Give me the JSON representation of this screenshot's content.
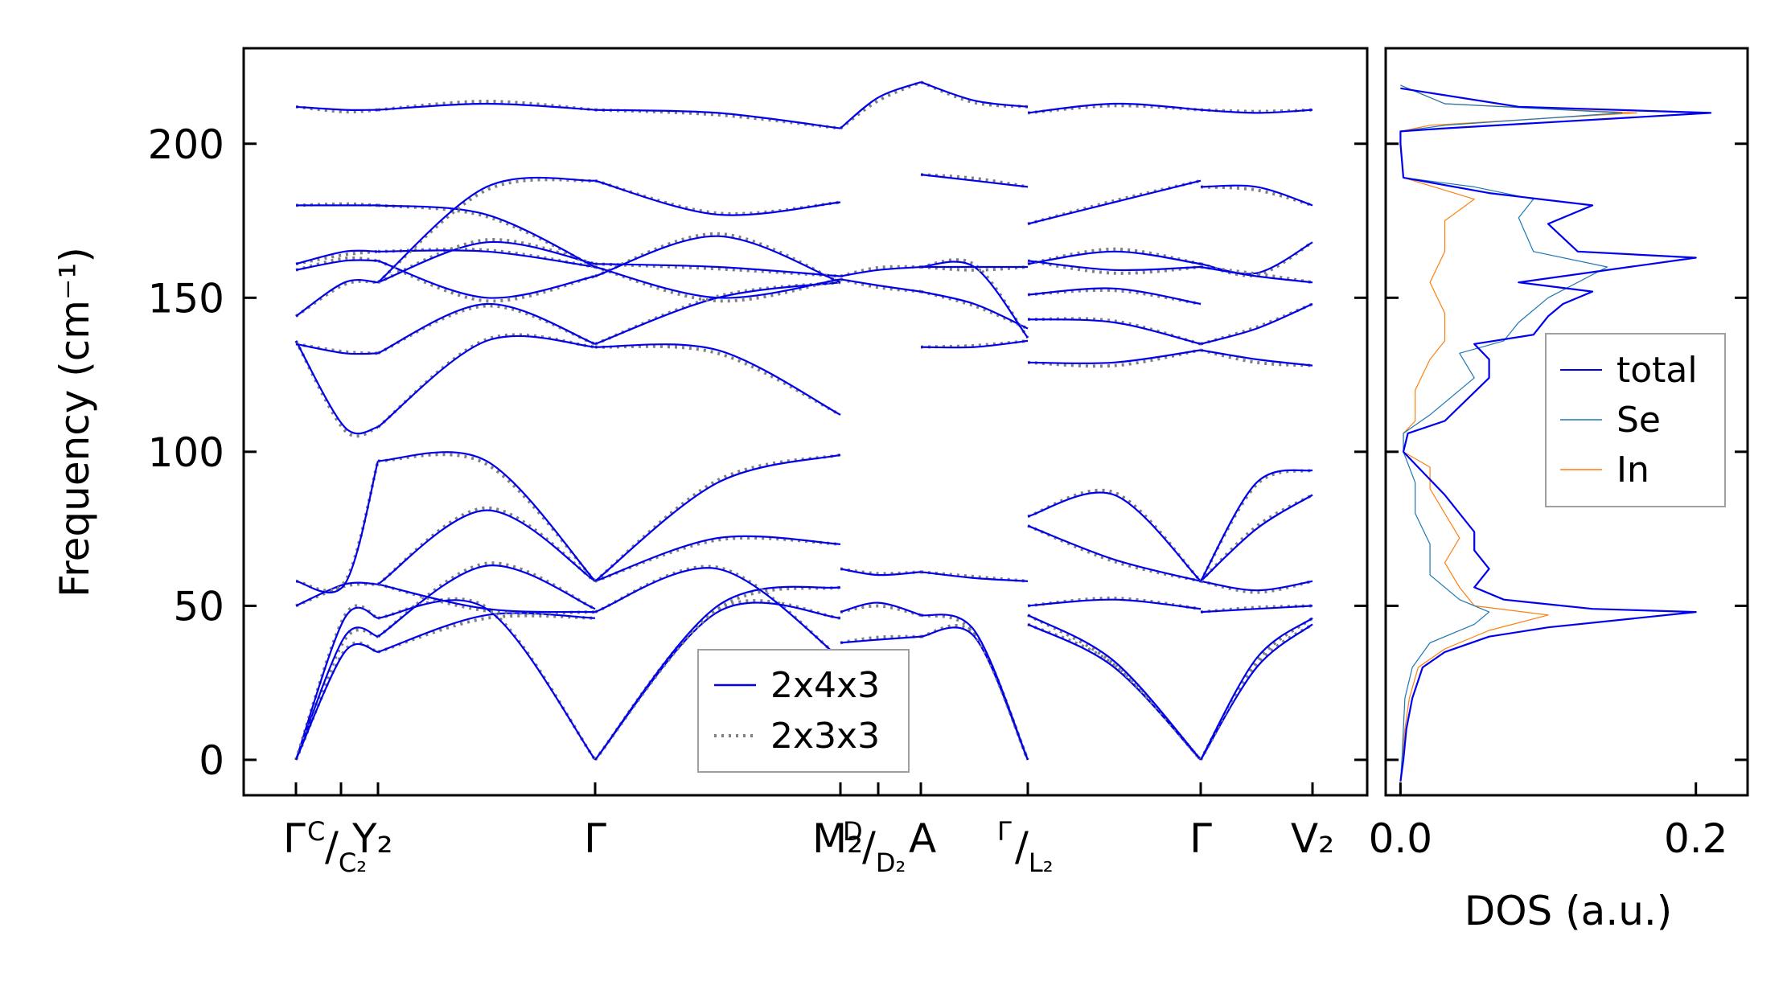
{
  "chart_data": [
    {
      "type": "line",
      "panel": "phonon-dispersion",
      "ylabel": "Frequency (cm⁻¹)",
      "ylim": [
        -11.5,
        231
      ],
      "y_ticks": [
        0,
        50,
        100,
        150,
        200
      ],
      "x_ticks": [
        {
          "main": "Γ"
        },
        {
          "main": "C",
          "small": true
        },
        {
          "main": "/",
          "sub": "C₂"
        },
        {
          "main": "Y₂"
        },
        {
          "main": "Γ"
        },
        {
          "main": "M₂"
        },
        {
          "main": "D",
          "small": true
        },
        {
          "main": "/",
          "sub": "D₂"
        },
        {
          "main": "A"
        },
        {
          "main": "Γ",
          "small": true
        },
        {
          "main": "/",
          "sub": "L₂"
        },
        {
          "main": "Γ"
        },
        {
          "main": "V₂"
        }
      ],
      "series": [
        {
          "name": "2x4x3",
          "style": "solid",
          "color": "#0000ee"
        },
        {
          "name": "2x3x3",
          "style": "dotted",
          "color": "#808080"
        }
      ],
      "segments": [
        {
          "x": [
            0.0,
            0.27
          ],
          "bands": [
            [
              0,
              46,
              46
            ],
            [
              0,
              40,
              40
            ],
            [
              0,
              35,
              35
            ],
            [
              50,
              57,
              57
            ],
            [
              58,
              57,
              97
            ],
            [
              136,
              108,
              108
            ],
            [
              135,
              132,
              132
            ],
            [
              144,
              155,
              155
            ],
            [
              159,
              162,
              162
            ],
            [
              161,
              165,
              165
            ],
            [
              180,
              180,
              180
            ],
            [
              212,
              211,
              211
            ]
          ]
        },
        {
          "x": [
            0.27,
            1.0
          ],
          "bands": [
            [
              40,
              63,
              49
            ],
            [
              35,
              47,
              46
            ],
            [
              46,
              49,
              0
            ],
            [
              57,
              49,
              48
            ],
            [
              57,
              81,
              58
            ],
            [
              97,
              97,
              58
            ],
            [
              108,
              136,
              134
            ],
            [
              132,
              148,
              135
            ],
            [
              155,
              168,
              161
            ],
            [
              162,
              150,
              157
            ],
            [
              165,
              165,
              160
            ],
            [
              180,
              177,
              160
            ],
            [
              211,
              213,
              211
            ],
            [
              155,
              186,
              188
            ]
          ]
        },
        {
          "x": [
            1.0,
            1.8
          ],
          "bands": [
            [
              0,
              48,
              46
            ],
            [
              0,
              50,
              56
            ],
            [
              48,
              62,
              33
            ],
            [
              58,
              72,
              70
            ],
            [
              58,
              90,
              99
            ],
            [
              134,
              133,
              112
            ],
            [
              135,
              150,
              155
            ],
            [
              161,
              160,
              157
            ],
            [
              157,
              170,
              155
            ],
            [
              160,
              150,
              156
            ],
            [
              188,
              177,
              181
            ],
            [
              211,
              210,
              205
            ]
          ]
        },
        {
          "x": [
            1.8,
            2.0
          ],
          "bands": [
            [
              38,
              39,
              40
            ],
            [
              48,
              51,
              47
            ],
            [
              62,
              60,
              61
            ],
            [
              156,
              154,
              152
            ],
            [
              157,
              159,
              160
            ],
            [
              205,
              215,
              220
            ]
          ]
        },
        {
          "x": [
            2.0,
            2.35
          ],
          "bands": [
            [
              40,
              40,
              0
            ],
            [
              47,
              42,
              0
            ],
            [
              61,
              59,
              58
            ],
            [
              152,
              148,
              140
            ],
            [
              160,
              160,
              137
            ],
            [
              160,
              160,
              160
            ],
            [
              134,
              134,
              136
            ],
            [
              220,
              214,
              212
            ],
            [
              190,
              188,
              186
            ]
          ]
        },
        {
          "x": [
            2.35,
            2.9
          ],
          "bands": [
            [
              44,
              30,
              0
            ],
            [
              47,
              32,
              0
            ],
            [
              50,
              52,
              49
            ],
            [
              76,
              65,
              58
            ],
            [
              79,
              86,
              58
            ],
            [
              129,
              129,
              133
            ],
            [
              143,
              142,
              135
            ],
            [
              151,
              153,
              148
            ],
            [
              161,
              165,
              161
            ],
            [
              162,
              159,
              160
            ],
            [
              174,
              181,
              188
            ],
            [
              210,
              213,
              211
            ]
          ]
        },
        {
          "x": [
            2.9,
            3.35
          ],
          "bands": [
            [
              0,
              30,
              44
            ],
            [
              0,
              33,
              46
            ],
            [
              48,
              49,
              50
            ],
            [
              58,
              55,
              58
            ],
            [
              58,
              75,
              86
            ],
            [
              133,
              130,
              128
            ],
            [
              135,
              140,
              148
            ],
            [
              161,
              158,
              168
            ],
            [
              160,
              157,
              155
            ],
            [
              186,
              186,
              180
            ],
            [
              211,
              210,
              211
            ],
            [
              58,
              90,
              94
            ]
          ]
        }
      ]
    },
    {
      "type": "line",
      "panel": "density-of-states",
      "xlabel": "DOS (a.u.)",
      "xlim": [
        -0.01,
        0.235
      ],
      "x_ticks": [
        "0.0",
        "0.2"
      ],
      "series": [
        {
          "name": "total",
          "color": "#0000ee",
          "points": [
            [
              0,
              -7
            ],
            [
              0.002,
              0
            ],
            [
              0.004,
              10
            ],
            [
              0.008,
              20
            ],
            [
              0.015,
              30
            ],
            [
              0.03,
              35
            ],
            [
              0.06,
              40
            ],
            [
              0.1,
              43
            ],
            [
              0.2,
              48
            ],
            [
              0.13,
              49
            ],
            [
              0.07,
              52
            ],
            [
              0.05,
              56
            ],
            [
              0.06,
              62
            ],
            [
              0.05,
              68
            ],
            [
              0.05,
              74
            ],
            [
              0.04,
              80
            ],
            [
              0.03,
              86
            ],
            [
              0.01,
              96
            ],
            [
              0.002,
              100
            ],
            [
              0.005,
              106
            ],
            [
              0.03,
              110
            ],
            [
              0.06,
              124
            ],
            [
              0.06,
              130
            ],
            [
              0.05,
              135
            ],
            [
              0.09,
              138
            ],
            [
              0.1,
              144
            ],
            [
              0.11,
              148
            ],
            [
              0.13,
              152
            ],
            [
              0.08,
              155
            ],
            [
              0.2,
              163
            ],
            [
              0.12,
              165
            ],
            [
              0.1,
              174
            ],
            [
              0.13,
              180
            ],
            [
              0.06,
              184
            ],
            [
              0.002,
              189
            ],
            [
              0,
              200
            ],
            [
              0,
              204
            ],
            [
              0.03,
              205
            ],
            [
              0.21,
              210
            ],
            [
              0.08,
              212
            ],
            [
              0,
              218
            ]
          ]
        },
        {
          "name": "Se",
          "color": "#1f77b4",
          "points": [
            [
              0,
              -7
            ],
            [
              0.001,
              0
            ],
            [
              0.002,
              10
            ],
            [
              0.003,
              20
            ],
            [
              0.008,
              30
            ],
            [
              0.02,
              38
            ],
            [
              0.05,
              44
            ],
            [
              0.06,
              48
            ],
            [
              0.04,
              52
            ],
            [
              0.02,
              60
            ],
            [
              0.02,
              70
            ],
            [
              0.01,
              80
            ],
            [
              0.01,
              90
            ],
            [
              0.002,
              100
            ],
            [
              0.002,
              106
            ],
            [
              0.02,
              112
            ],
            [
              0.05,
              124
            ],
            [
              0.04,
              132
            ],
            [
              0.07,
              136
            ],
            [
              0.08,
              142
            ],
            [
              0.1,
              150
            ],
            [
              0.14,
              160
            ],
            [
              0.09,
              165
            ],
            [
              0.08,
              176
            ],
            [
              0.09,
              182
            ],
            [
              0.05,
              186
            ],
            [
              0.002,
              189
            ],
            [
              0,
              200
            ],
            [
              0,
              204
            ],
            [
              0.03,
              206
            ],
            [
              0.15,
              210
            ],
            [
              0.03,
              213
            ],
            [
              0,
              219
            ]
          ]
        },
        {
          "name": "In",
          "color": "#ff7f0e",
          "points": [
            [
              0,
              -7
            ],
            [
              0.001,
              0
            ],
            [
              0.003,
              10
            ],
            [
              0.006,
              20
            ],
            [
              0.012,
              30
            ],
            [
              0.03,
              36
            ],
            [
              0.06,
              42
            ],
            [
              0.1,
              47
            ],
            [
              0.05,
              50
            ],
            [
              0.04,
              56
            ],
            [
              0.03,
              64
            ],
            [
              0.04,
              72
            ],
            [
              0.03,
              80
            ],
            [
              0.02,
              88
            ],
            [
              0.02,
              95
            ],
            [
              0.002,
              100
            ],
            [
              0.002,
              106
            ],
            [
              0.01,
              110
            ],
            [
              0.01,
              120
            ],
            [
              0.02,
              130
            ],
            [
              0.03,
              136
            ],
            [
              0.03,
              145
            ],
            [
              0.02,
              155
            ],
            [
              0.03,
              165
            ],
            [
              0.03,
              175
            ],
            [
              0.05,
              182
            ],
            [
              0.002,
              189
            ],
            [
              0,
              200
            ],
            [
              0,
              204
            ],
            [
              0.02,
              206
            ],
            [
              0.16,
              210
            ],
            [
              0.03,
              213
            ],
            [
              0,
              219
            ]
          ]
        }
      ]
    }
  ]
}
